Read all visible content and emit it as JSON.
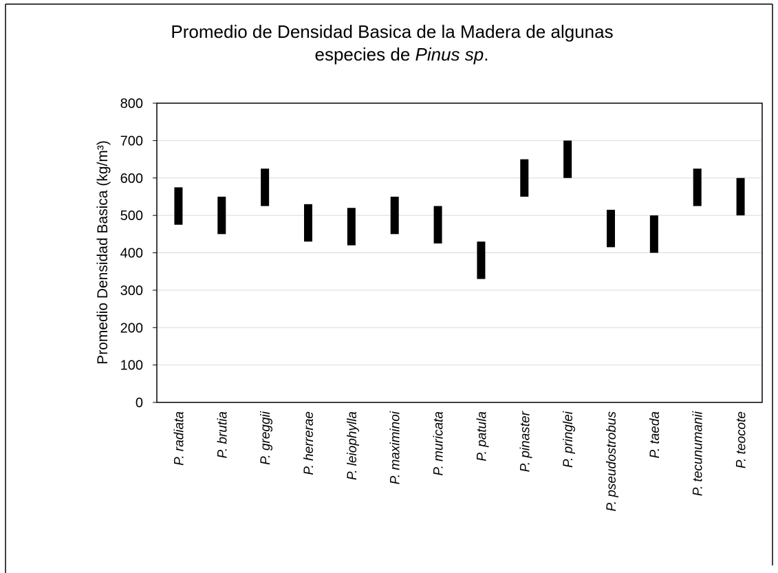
{
  "chart_data": {
    "type": "floating_bar",
    "title_lines": [
      [
        "Promedio de Densidad Basica de la Madera de algunas"
      ],
      [
        "especies de ",
        "Pinus sp",
        "."
      ]
    ],
    "y_label": "Promedio Densidad Basica (kg/m³)",
    "categories": [
      "P. radiata",
      "P. brutia",
      "P. greggii",
      "P. herrerae",
      "P. leiophylla",
      "P. maximinoi",
      "P. muricata",
      "P. patula",
      "P. pinaster",
      "P. pringlei",
      "P. pseudostrobus",
      "P. taeda",
      "P. tecunumanii",
      "P. teocote"
    ],
    "low": [
      475,
      450,
      525,
      430,
      420,
      450,
      425,
      330,
      550,
      600,
      415,
      400,
      525,
      500
    ],
    "high": [
      575,
      550,
      625,
      530,
      520,
      550,
      525,
      430,
      650,
      700,
      515,
      500,
      625,
      600
    ],
    "color": "#000000",
    "ylim": [
      0,
      800
    ],
    "yticks": [
      0,
      100,
      200,
      300,
      400,
      500,
      600,
      700,
      800
    ],
    "grid": true
  }
}
